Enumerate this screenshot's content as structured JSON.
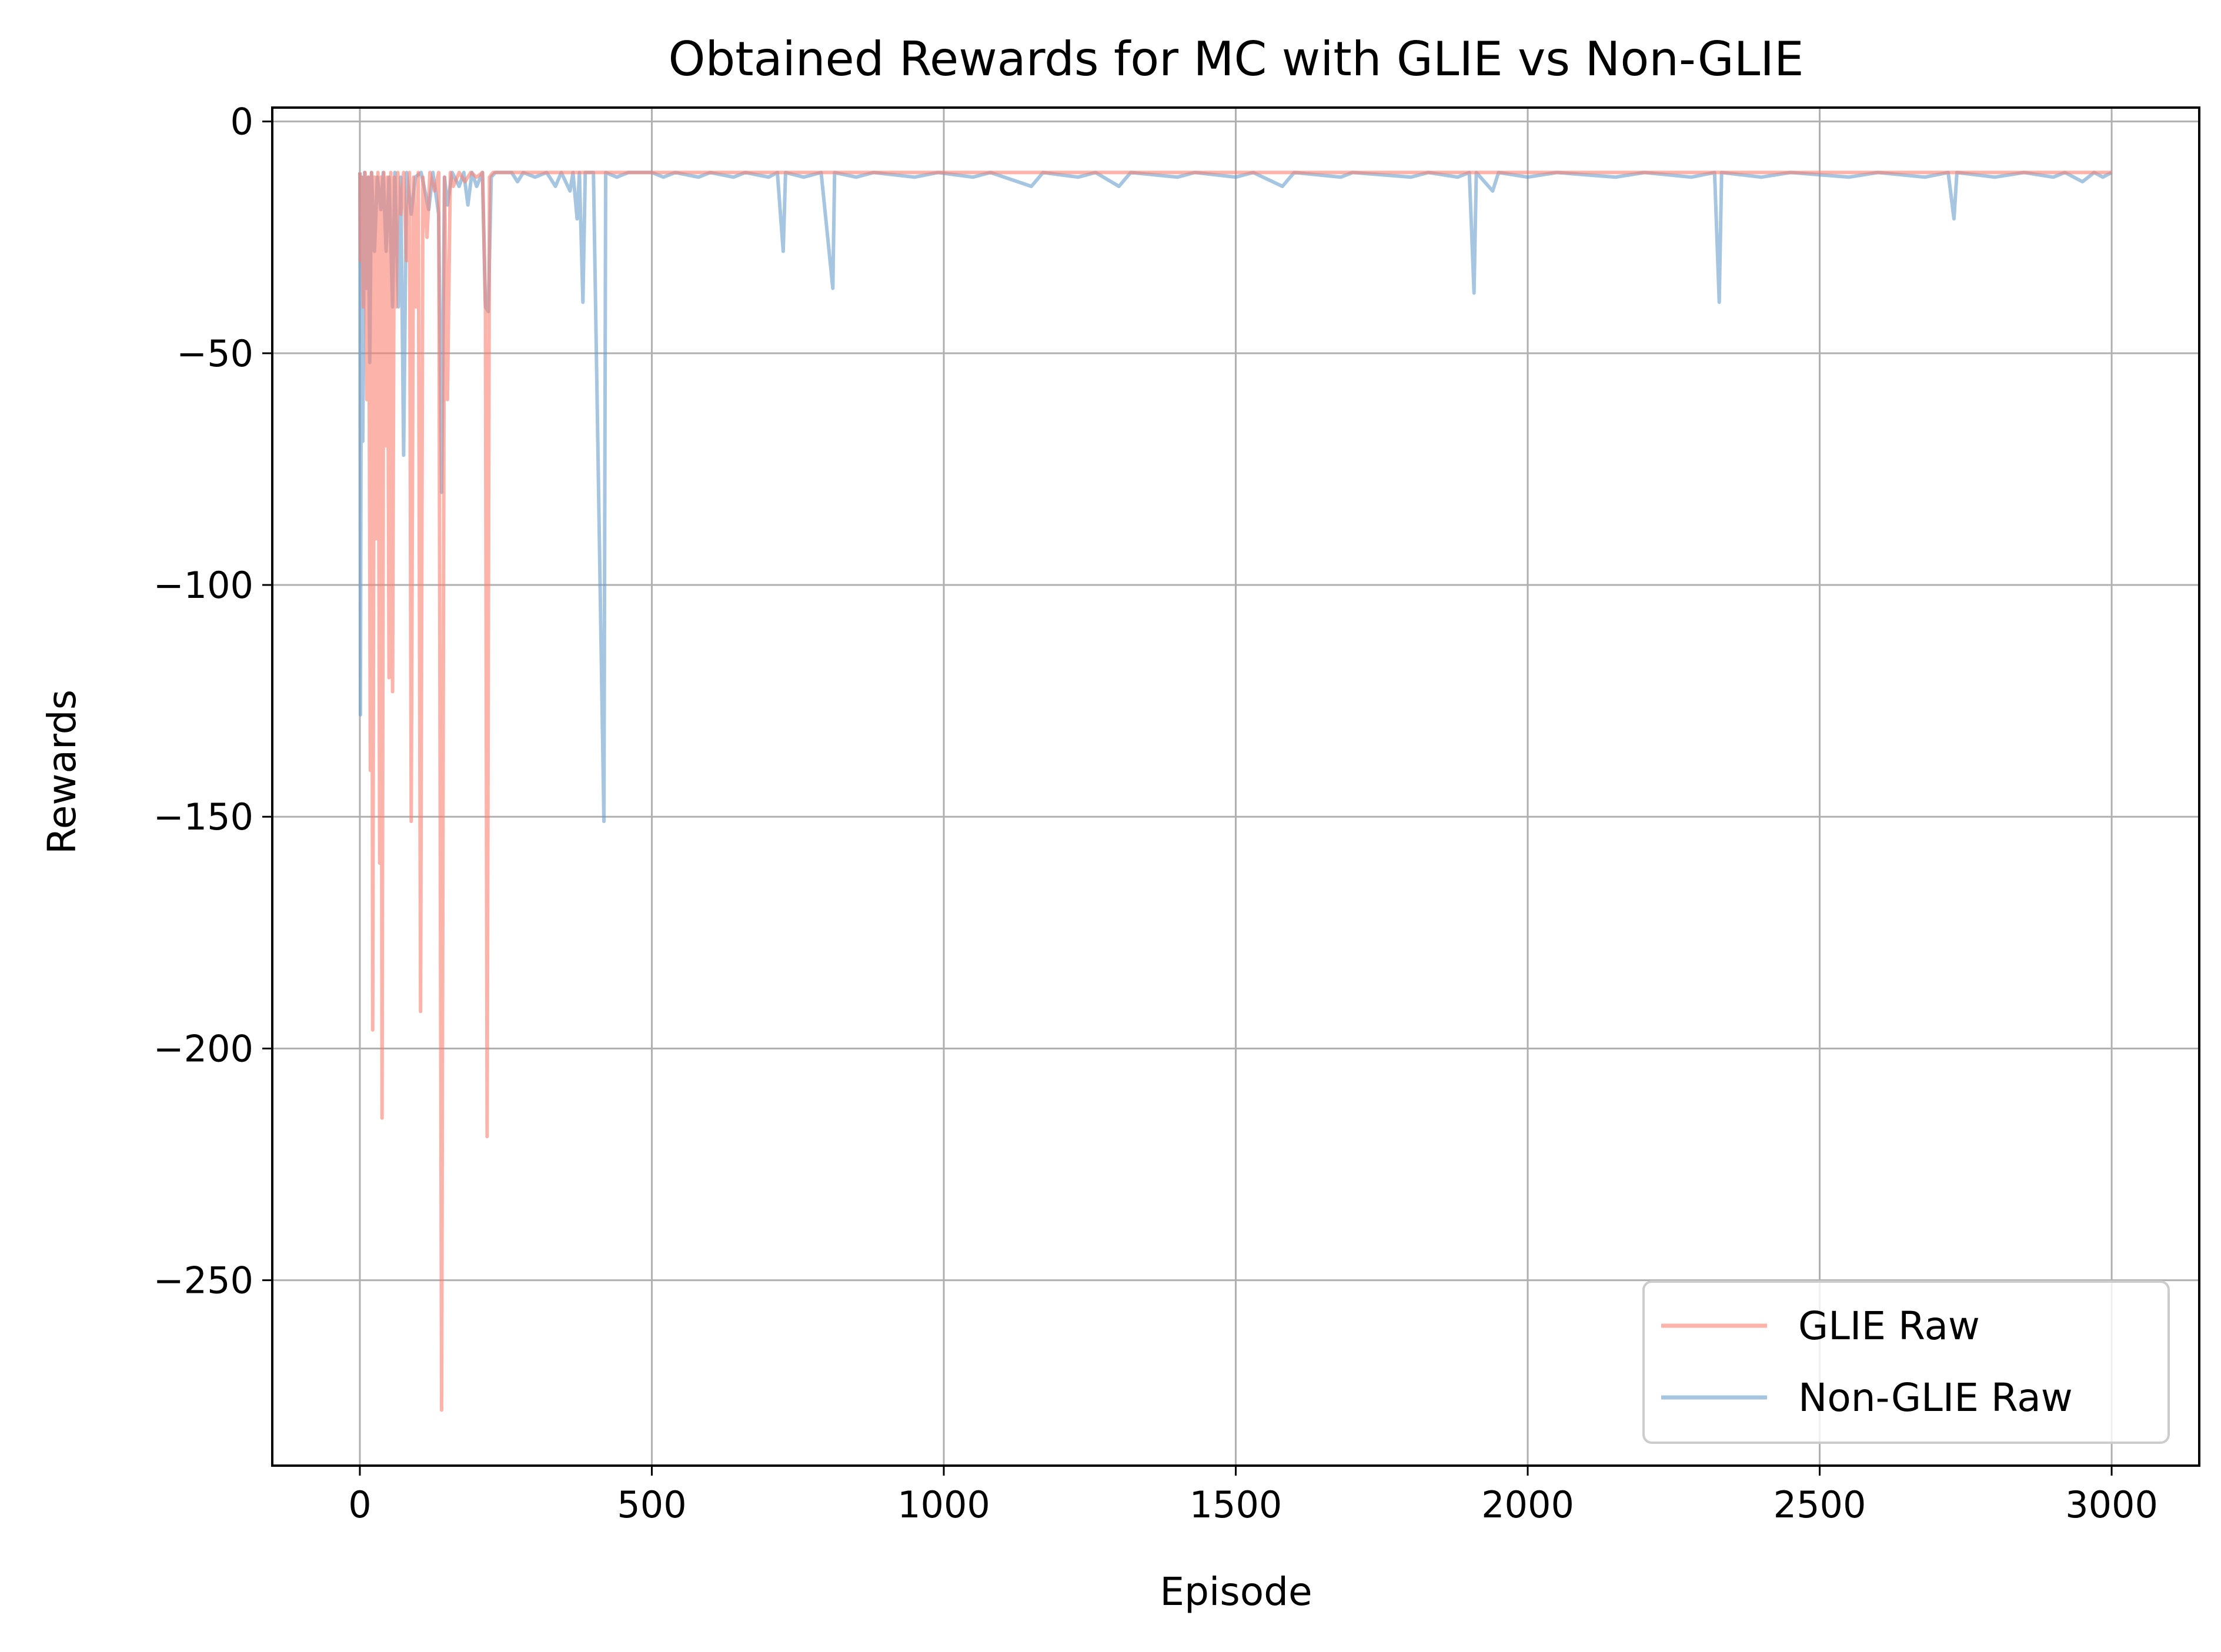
{
  "chart_data": {
    "type": "line",
    "title": "Obtained Rewards for MC with GLIE vs Non-GLIE",
    "xlabel": "Episode",
    "ylabel": "Rewards",
    "xlim": [
      -150,
      3150
    ],
    "ylim": [
      -290,
      3
    ],
    "xticks": [
      0,
      500,
      1000,
      1500,
      2000,
      2500,
      3000
    ],
    "xtick_labels": [
      "0",
      "500",
      "1000",
      "1500",
      "2000",
      "2500",
      "3000"
    ],
    "yticks": [
      0,
      -50,
      -100,
      -150,
      -200,
      -250
    ],
    "ytick_labels": [
      "0",
      "−50",
      "−100",
      "−150",
      "−200",
      "−250"
    ],
    "grid": true,
    "legend": "bottom-right",
    "baseline_reward": -11,
    "series": [
      {
        "name": "GLIE Raw",
        "color": "#fa8072",
        "opacity": 0.6,
        "points": [
          [
            0,
            -11
          ],
          [
            1,
            -30
          ],
          [
            3,
            -12
          ],
          [
            6,
            -40
          ],
          [
            9,
            -11
          ],
          [
            12,
            -60
          ],
          [
            15,
            -12
          ],
          [
            18,
            -140
          ],
          [
            20,
            -11
          ],
          [
            22,
            -196
          ],
          [
            25,
            -12
          ],
          [
            28,
            -90
          ],
          [
            31,
            -11
          ],
          [
            34,
            -160
          ],
          [
            36,
            -12
          ],
          [
            38,
            -215
          ],
          [
            41,
            -11
          ],
          [
            44,
            -70
          ],
          [
            47,
            -12
          ],
          [
            50,
            -120
          ],
          [
            53,
            -11
          ],
          [
            56,
            -123
          ],
          [
            59,
            -12
          ],
          [
            62,
            -40
          ],
          [
            65,
            -11
          ],
          [
            70,
            -20
          ],
          [
            75,
            -11
          ],
          [
            80,
            -30
          ],
          [
            85,
            -11
          ],
          [
            88,
            -151
          ],
          [
            92,
            -12
          ],
          [
            96,
            -40
          ],
          [
            100,
            -11
          ],
          [
            104,
            -192
          ],
          [
            108,
            -12
          ],
          [
            115,
            -25
          ],
          [
            120,
            -11
          ],
          [
            128,
            -15
          ],
          [
            135,
            -11
          ],
          [
            140,
            -278
          ],
          [
            145,
            -12
          ],
          [
            150,
            -60
          ],
          [
            155,
            -11
          ],
          [
            160,
            -14
          ],
          [
            170,
            -11
          ],
          [
            180,
            -13
          ],
          [
            190,
            -11
          ],
          [
            200,
            -12
          ],
          [
            210,
            -11
          ],
          [
            215,
            -40
          ],
          [
            218,
            -219
          ],
          [
            222,
            -12
          ],
          [
            228,
            -11
          ],
          [
            240,
            -11
          ],
          [
            3000,
            -11
          ]
        ]
      },
      {
        "name": "Non-GLIE Raw",
        "color": "#6a9fcc",
        "opacity": 0.6,
        "points": [
          [
            0,
            -11
          ],
          [
            1,
            -128
          ],
          [
            3,
            -12
          ],
          [
            5,
            -69
          ],
          [
            8,
            -11
          ],
          [
            11,
            -36
          ],
          [
            14,
            -12
          ],
          [
            17,
            -52
          ],
          [
            20,
            -11
          ],
          [
            25,
            -28
          ],
          [
            30,
            -12
          ],
          [
            36,
            -19
          ],
          [
            40,
            -11
          ],
          [
            45,
            -28
          ],
          [
            50,
            -12
          ],
          [
            56,
            -40
          ],
          [
            60,
            -11
          ],
          [
            66,
            -40
          ],
          [
            70,
            -12
          ],
          [
            75,
            -72
          ],
          [
            80,
            -11
          ],
          [
            88,
            -20
          ],
          [
            95,
            -12
          ],
          [
            105,
            -11
          ],
          [
            118,
            -19
          ],
          [
            125,
            -11
          ],
          [
            135,
            -20
          ],
          [
            140,
            -80
          ],
          [
            145,
            -12
          ],
          [
            150,
            -18
          ],
          [
            158,
            -11
          ],
          [
            170,
            -14
          ],
          [
            178,
            -11
          ],
          [
            185,
            -18
          ],
          [
            192,
            -11
          ],
          [
            200,
            -14
          ],
          [
            210,
            -11
          ],
          [
            215,
            -40
          ],
          [
            220,
            -41
          ],
          [
            225,
            -12
          ],
          [
            232,
            -11
          ],
          [
            260,
            -11
          ],
          [
            270,
            -13
          ],
          [
            280,
            -11
          ],
          [
            300,
            -12
          ],
          [
            320,
            -11
          ],
          [
            335,
            -14
          ],
          [
            345,
            -11
          ],
          [
            360,
            -15
          ],
          [
            365,
            -11
          ],
          [
            372,
            -21
          ],
          [
            376,
            -11
          ],
          [
            382,
            -39
          ],
          [
            386,
            -11
          ],
          [
            400,
            -11
          ],
          [
            418,
            -151
          ],
          [
            421,
            -11
          ],
          [
            440,
            -12
          ],
          [
            460,
            -11
          ],
          [
            500,
            -11
          ],
          [
            520,
            -12
          ],
          [
            540,
            -11
          ],
          [
            580,
            -12
          ],
          [
            600,
            -11
          ],
          [
            640,
            -12
          ],
          [
            660,
            -11
          ],
          [
            700,
            -12
          ],
          [
            715,
            -11
          ],
          [
            725,
            -28
          ],
          [
            729,
            -11
          ],
          [
            760,
            -12
          ],
          [
            790,
            -11
          ],
          [
            810,
            -36
          ],
          [
            813,
            -11
          ],
          [
            850,
            -12
          ],
          [
            880,
            -11
          ],
          [
            950,
            -12
          ],
          [
            990,
            -11
          ],
          [
            1050,
            -12
          ],
          [
            1080,
            -11
          ],
          [
            1150,
            -14
          ],
          [
            1170,
            -11
          ],
          [
            1230,
            -12
          ],
          [
            1260,
            -11
          ],
          [
            1300,
            -14
          ],
          [
            1320,
            -11
          ],
          [
            1400,
            -12
          ],
          [
            1430,
            -11
          ],
          [
            1500,
            -12
          ],
          [
            1530,
            -11
          ],
          [
            1580,
            -14
          ],
          [
            1600,
            -11
          ],
          [
            1680,
            -12
          ],
          [
            1700,
            -11
          ],
          [
            1800,
            -12
          ],
          [
            1830,
            -11
          ],
          [
            1880,
            -12
          ],
          [
            1900,
            -11
          ],
          [
            1908,
            -37
          ],
          [
            1912,
            -11
          ],
          [
            1940,
            -15
          ],
          [
            1950,
            -11
          ],
          [
            2000,
            -12
          ],
          [
            2050,
            -11
          ],
          [
            2150,
            -12
          ],
          [
            2200,
            -11
          ],
          [
            2280,
            -12
          ],
          [
            2320,
            -11
          ],
          [
            2328,
            -39
          ],
          [
            2332,
            -11
          ],
          [
            2400,
            -12
          ],
          [
            2450,
            -11
          ],
          [
            2550,
            -12
          ],
          [
            2600,
            -11
          ],
          [
            2680,
            -12
          ],
          [
            2720,
            -11
          ],
          [
            2730,
            -21
          ],
          [
            2735,
            -11
          ],
          [
            2800,
            -12
          ],
          [
            2850,
            -11
          ],
          [
            2900,
            -12
          ],
          [
            2920,
            -11
          ],
          [
            2950,
            -13
          ],
          [
            2970,
            -11
          ],
          [
            2985,
            -12
          ],
          [
            3000,
            -11
          ]
        ]
      }
    ]
  }
}
